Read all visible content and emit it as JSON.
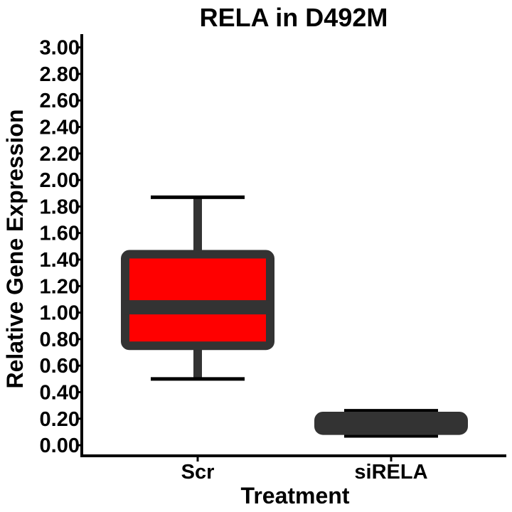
{
  "chart_data": {
    "type": "box",
    "title": "RELA in D492M",
    "xlabel": "Treatment",
    "ylabel": "Relative Gene Expression",
    "ylim": [
      -0.08,
      3.1
    ],
    "y_ticks": [
      "0.00",
      "0.20",
      "0.40",
      "0.60",
      "0.80",
      "1.00",
      "1.20",
      "1.40",
      "1.60",
      "1.80",
      "2.00",
      "2.20",
      "2.40",
      "2.60",
      "2.80",
      "3.00"
    ],
    "y_tick_values": [
      0,
      0.2,
      0.4,
      0.6,
      0.8,
      1.0,
      1.2,
      1.4,
      1.6,
      1.8,
      2.0,
      2.2,
      2.4,
      2.6,
      2.8,
      3.0
    ],
    "categories": [
      "Scr",
      "siRELA"
    ],
    "boxes": [
      {
        "category": "Scr",
        "whisker_low": 0.5,
        "q1": 0.75,
        "median": 1.04,
        "q3": 1.44,
        "whisker_high": 1.87,
        "fill": "#ff0000"
      },
      {
        "category": "siRELA",
        "whisker_low": 0.07,
        "q1": 0.11,
        "median": 0.16,
        "q3": 0.22,
        "whisker_high": 0.26,
        "fill": "#333333"
      }
    ],
    "grid": false,
    "colors": {
      "box_outline": "#333333",
      "whisker": "#333333",
      "cap": "#000000",
      "axis": "#000000"
    }
  }
}
